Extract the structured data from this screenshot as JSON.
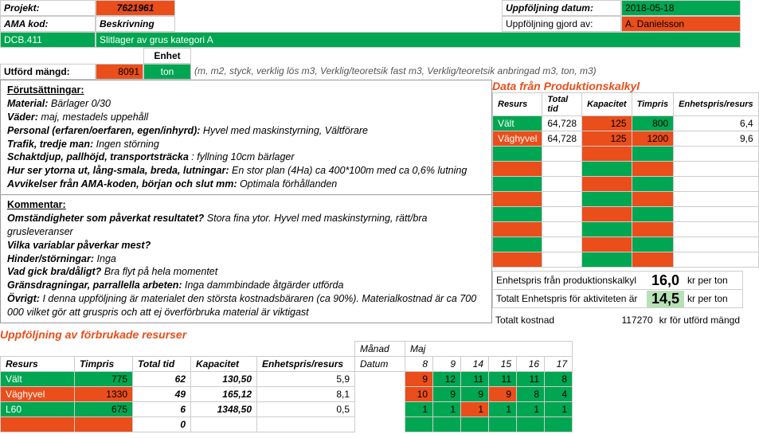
{
  "colors": {
    "green": "#00a651",
    "orange": "#e94e1b",
    "lightGreen": "#b6e2b6",
    "gray": "#888"
  },
  "header": {
    "projekt_label": "Projekt:",
    "projekt_value": "7621961",
    "amakod_label": "AMA kod:",
    "amakod_value": "Beskrivning",
    "code": "DCB.411",
    "code_desc": "Slitlager av grus kategori A",
    "enhet_label": "Enhet",
    "utford_label": "Utförd mängd:",
    "utford_value": "8091",
    "utford_unit": "ton",
    "units_note": "(m, m2, styck, verklig lös m3, Verklig/teoretsik fast m3, Verklig/teoretsik anbringad m3, ton, m3)",
    "uppf_datum_label": "Uppföljning datum:",
    "uppf_datum_value": "2018-05-18",
    "uppf_gjord_label": "Uppföljning gjord av:",
    "uppf_gjord_value": "A. Danielsson"
  },
  "forutsattningar": {
    "title": "Förutsättningar:",
    "material_label": "Material:",
    "material": " Bärlager 0/30",
    "vader_label": "Väder:",
    "vader": " maj, mestadels uppehåll",
    "personal_label": "Personal (erfaren/oerfaren, egen/inhyrd):",
    "personal": " Hyvel med maskinstyrning, Vältförare",
    "trafik_label": "Trafik, tredje man:",
    "trafik": " Ingen störning",
    "schakt_label": "Schaktdjup, pallhöjd, transportsträcka",
    "schakt": " : fyllning 10cm bärlager",
    "ytor_label": "Hur ser ytorna ut, lång-smala, breda, lutningar:",
    "ytor": " En stor plan (4Ha) ca 400*100m med ca 0,6% lutning",
    "avvik_label": "Avvikelser från AMA-koden, början och slut mm:",
    "avvik": " Optimala förhållanden"
  },
  "kommentar": {
    "title": "Kommentar:",
    "q1_label": "Omständigheter som påverkat resultatet?",
    "q1": " Stora fina ytor. Hyvel med maskinstyrning, rätt/bra grusleveranser",
    "q2_label": "Vilka variablar påverkar mest?",
    "q3_label": "Hinder/störningar:",
    "q3": " Inga",
    "q4_label": "Vad gick bra/dåligt?",
    "q4": " Bra flyt på hela momentet",
    "q5_label": "Gränsdragningar, parrallella arbeten:",
    "q5": " Inga dammbindade åtgärder utförda",
    "q6_label": "Övrigt:",
    "q6": " I denna uppföljning är materialet den största kostnadsbäraren (ca 90%). Materialkostnad är ca 700 000 vilket gör att gruspris och att ej överförbruka material är viktigast"
  },
  "prodkalkyl": {
    "title": "Data från Produktionskalkyl",
    "headers": [
      "Resurs",
      "Total tid",
      "Kapacitet",
      "Timpris",
      "Enhetspris/resurs"
    ],
    "rows": [
      {
        "resurs": "Vält",
        "total_tid": "64,728",
        "kapacitet": "125",
        "timpris": "800",
        "enhetspris": "6,4",
        "c1": "green",
        "c2": "orange",
        "c3": "green"
      },
      {
        "resurs": "Väghyvel",
        "total_tid": "64,728",
        "kapacitet": "125",
        "timpris": "1200",
        "enhetspris": "9,6",
        "c1": "orange",
        "c2": "orange",
        "c3": "orange"
      }
    ],
    "empty_rows": [
      [
        "green",
        "orange",
        "green"
      ],
      [
        "orange",
        "green",
        "orange"
      ],
      [
        "green",
        "orange",
        "green"
      ],
      [
        "orange",
        "green",
        "orange"
      ],
      [
        "green",
        "orange",
        "green"
      ],
      [
        "orange",
        "green",
        "orange"
      ],
      [
        "green",
        "orange",
        "green"
      ],
      [
        "orange",
        "green",
        "orange"
      ]
    ],
    "summary": {
      "line1_label": "Enhetspris från produktionskalkyl",
      "line1_value": "16,0",
      "line1_unit": "kr per ton",
      "line2_label": "Totalt Enhetspris för aktiviteten är",
      "line2_value": "14,5",
      "line2_unit": "kr per ton",
      "line3_label": "Totalt kostnad",
      "line3_value": "117270",
      "line3_unit": "kr för utförd mängd"
    }
  },
  "uppfoljning": {
    "title": "Uppföljning av förbrukade resurser",
    "headers": [
      "Resurs",
      "Timpris",
      "Total tid",
      "Kapacitet",
      "Enhetspris/resurs"
    ],
    "manad_label": "Månad",
    "manad_value": "Maj",
    "datum_label": "Datum",
    "dates": [
      "8",
      "9",
      "14",
      "15",
      "16",
      "17"
    ],
    "rows": [
      {
        "resurs": "Vält",
        "timpris": "775",
        "total_tid": "62",
        "kapacitet": "130,50",
        "enhetspris": "5,9",
        "cells": [
          {
            "v": "9",
            "c": "orange"
          },
          {
            "v": "12",
            "c": "green"
          },
          {
            "v": "11",
            "c": "green"
          },
          {
            "v": "11",
            "c": "green"
          },
          {
            "v": "11",
            "c": "green"
          },
          {
            "v": "8",
            "c": "green"
          }
        ],
        "bg": "green"
      },
      {
        "resurs": "Väghyvel",
        "timpris": "1330",
        "total_tid": "49",
        "kapacitet": "165,12",
        "enhetspris": "8,1",
        "cells": [
          {
            "v": "10",
            "c": "orange"
          },
          {
            "v": "9",
            "c": "green"
          },
          {
            "v": "9",
            "c": "green"
          },
          {
            "v": "9",
            "c": "orange"
          },
          {
            "v": "8",
            "c": "green"
          },
          {
            "v": "4",
            "c": "green"
          }
        ],
        "bg": "orange"
      },
      {
        "resurs": "L60",
        "timpris": "675",
        "total_tid": "6",
        "kapacitet": "1348,50",
        "enhetspris": "0,5",
        "cells": [
          {
            "v": "1",
            "c": "green"
          },
          {
            "v": "1",
            "c": "green"
          },
          {
            "v": "1",
            "c": "orange"
          },
          {
            "v": "1",
            "c": "green"
          },
          {
            "v": "1",
            "c": "green"
          },
          {
            "v": "1",
            "c": "green"
          }
        ],
        "bg": "green"
      }
    ],
    "empty_total": "0"
  }
}
